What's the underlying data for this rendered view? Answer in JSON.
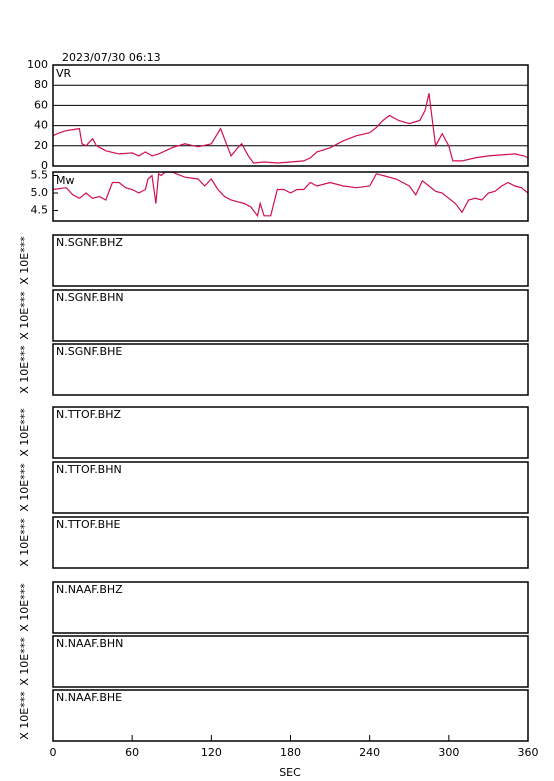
{
  "chart_data": [
    {
      "type": "line",
      "title": "2023/07/30 06:13",
      "label": "VR",
      "color": "#d0104c",
      "xlim": [
        0,
        360
      ],
      "ylim": [
        0,
        100
      ],
      "yticks": [
        0,
        20,
        40,
        60,
        80,
        100
      ],
      "grid": true,
      "x": [
        0,
        5,
        10,
        15,
        20,
        22,
        25,
        30,
        33,
        40,
        50,
        60,
        65,
        70,
        75,
        80,
        90,
        100,
        110,
        120,
        127,
        132,
        135,
        140,
        143,
        148,
        152,
        160,
        170,
        180,
        190,
        195,
        200,
        210,
        220,
        230,
        240,
        245,
        250,
        255,
        262,
        270,
        278,
        282,
        285,
        288,
        290,
        295,
        300,
        303,
        310,
        320,
        330,
        340,
        350,
        357,
        360
      ],
      "values": [
        30,
        33,
        35,
        36,
        37,
        22,
        20,
        27,
        20,
        15,
        12,
        13,
        10,
        14,
        10,
        12,
        18,
        22,
        19,
        22,
        37,
        20,
        10,
        18,
        22,
        10,
        3,
        4,
        3,
        4,
        5,
        8,
        14,
        18,
        25,
        30,
        33,
        38,
        45,
        50,
        45,
        42,
        45,
        55,
        72,
        40,
        20,
        32,
        20,
        5,
        5,
        8,
        10,
        11,
        12,
        10,
        8
      ]
    },
    {
      "type": "line",
      "label": "Mw",
      "color": "#d0104c",
      "xlim": [
        0,
        360
      ],
      "ylim": [
        4.2,
        5.6
      ],
      "yticks": [
        4.5,
        {
          "value": 5,
          "label": "5.0"
        },
        5.5
      ],
      "grid": false,
      "x": [
        0,
        10,
        15,
        20,
        25,
        30,
        35,
        40,
        45,
        50,
        55,
        60,
        65,
        70,
        72,
        75,
        78,
        80,
        82,
        85,
        90,
        100,
        110,
        115,
        120,
        125,
        130,
        135,
        140,
        145,
        150,
        155,
        157,
        160,
        165,
        170,
        175,
        180,
        185,
        190,
        195,
        200,
        210,
        220,
        230,
        240,
        245,
        250,
        260,
        265,
        270,
        275,
        280,
        285,
        290,
        295,
        300,
        305,
        310,
        315,
        320,
        325,
        330,
        335,
        340,
        345,
        350,
        355,
        360
      ],
      "values": [
        5.1,
        5.15,
        4.95,
        4.85,
        5.0,
        4.85,
        4.9,
        4.8,
        5.3,
        5.3,
        5.15,
        5.1,
        5.0,
        5.1,
        5.4,
        5.5,
        4.7,
        5.55,
        5.5,
        5.6,
        5.6,
        5.45,
        5.4,
        5.2,
        5.4,
        5.1,
        4.9,
        4.8,
        4.75,
        4.7,
        4.6,
        4.35,
        4.7,
        4.35,
        4.35,
        5.1,
        5.1,
        5.0,
        5.1,
        5.1,
        5.3,
        5.2,
        5.3,
        5.2,
        5.15,
        5.2,
        5.55,
        5.5,
        5.4,
        5.3,
        5.2,
        4.95,
        5.35,
        5.2,
        5.05,
        5.0,
        4.85,
        4.7,
        4.45,
        4.8,
        4.85,
        4.8,
        5.0,
        5.05,
        5.2,
        5.3,
        5.2,
        5.15,
        5.0
      ]
    }
  ],
  "traces": [
    {
      "label": "N.SGNF.BHZ",
      "scale": "X 10E***"
    },
    {
      "label": "N.SGNF.BHN",
      "scale": "X 10E***"
    },
    {
      "label": "N.SGNF.BHE",
      "scale": "X 10E***"
    },
    {
      "label": "N.TTOF.BHZ",
      "scale": "X 10E***"
    },
    {
      "label": "N.TTOF.BHN",
      "scale": "X 10E***"
    },
    {
      "label": "N.TTOF.BHE",
      "scale": "X 10E***"
    },
    {
      "label": "N.NAAF.BHZ",
      "scale": "X 10E***"
    },
    {
      "label": "N.NAAF.BHN",
      "scale": "X 10E***"
    },
    {
      "label": "N.NAAF.BHE",
      "scale": "X 10E***"
    }
  ],
  "time_axis": {
    "xlabel": "SEC",
    "xlim": [
      0,
      360
    ],
    "xticks": [
      0,
      60,
      120,
      180,
      240,
      300,
      360
    ]
  }
}
